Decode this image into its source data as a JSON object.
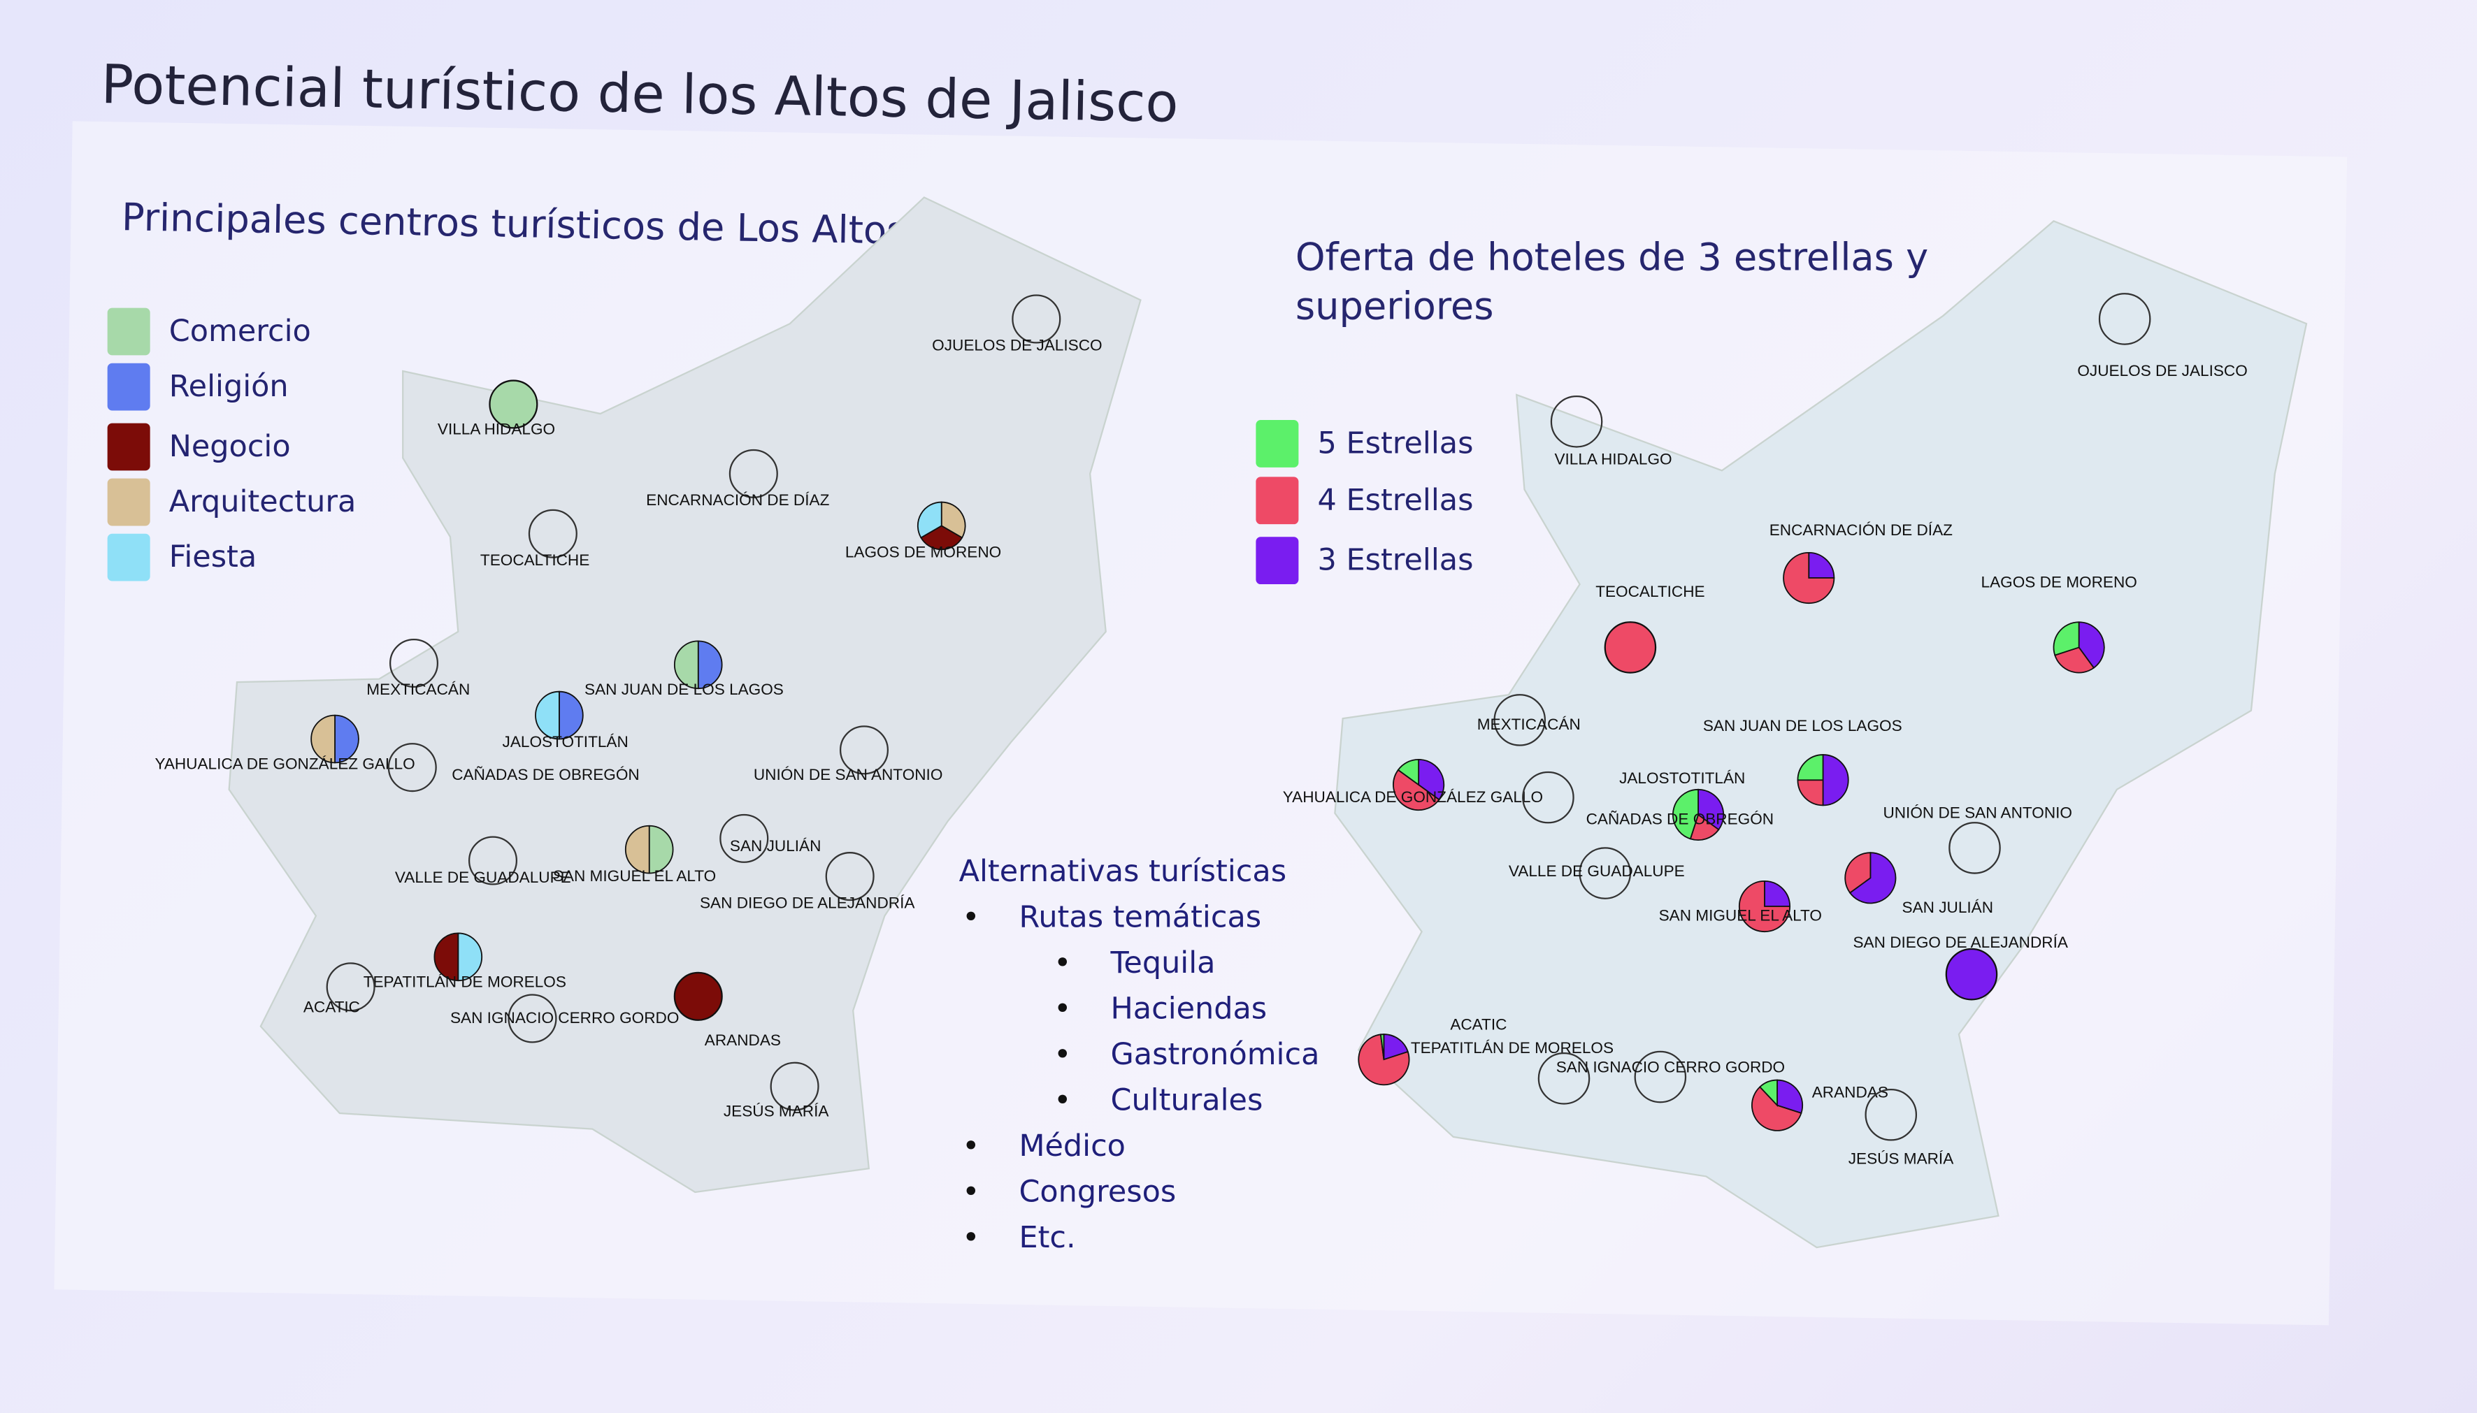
{
  "slide_title": "Potencial turístico de los Altos de Jalisco",
  "left_map": {
    "title": "Principales centros turísticos de Los Altos",
    "legend": [
      {
        "label": "Comercio",
        "color": "#a7d9a9"
      },
      {
        "label": "Religión",
        "color": "#5f7cf0"
      },
      {
        "label": "Negocio",
        "color": "#7c0c08"
      },
      {
        "label": "Arquitectura",
        "color": "#d8c096"
      },
      {
        "label": "Fiesta",
        "color": "#8fe0f7"
      }
    ],
    "municipalities": [
      {
        "name": "OJUELOS DE JALISCO",
        "categories": []
      },
      {
        "name": "VILLA HIDALGO",
        "categories": [
          "Comercio"
        ]
      },
      {
        "name": "ENCARNACIÓN DE DÍAZ",
        "categories": []
      },
      {
        "name": "TEOCALTICHE",
        "categories": []
      },
      {
        "name": "LAGOS DE MORENO",
        "categories": [
          "Arquitectura",
          "Negocio",
          "Fiesta"
        ]
      },
      {
        "name": "MEXTICACÁN",
        "categories": []
      },
      {
        "name": "SAN JUAN DE LOS LAGOS",
        "categories": [
          "Religión",
          "Comercio"
        ]
      },
      {
        "name": "JALOSTOTITLÁN",
        "categories": [
          "Religión",
          "Fiesta"
        ]
      },
      {
        "name": "YAHUALICA DE GONZÁLEZ GALLO",
        "categories": [
          "Religión",
          "Arquitectura"
        ]
      },
      {
        "name": "CAÑADAS DE OBREGÓN",
        "categories": []
      },
      {
        "name": "UNIÓN DE SAN ANTONIO",
        "categories": []
      },
      {
        "name": "VALLE DE GUADALUPE",
        "categories": []
      },
      {
        "name": "SAN MIGUEL EL ALTO",
        "categories": [
          "Comercio",
          "Arquitectura"
        ]
      },
      {
        "name": "SAN JULIÁN",
        "categories": []
      },
      {
        "name": "SAN DIEGO DE ALEJANDRÍA",
        "categories": []
      },
      {
        "name": "TEPATITLÁN DE MORELOS",
        "categories": [
          "Fiesta",
          "Negocio"
        ]
      },
      {
        "name": "ACATIC",
        "categories": []
      },
      {
        "name": "SAN IGNACIO CERRO GORDO",
        "categories": []
      },
      {
        "name": "ARANDAS",
        "categories": [
          "Negocio"
        ]
      },
      {
        "name": "JESÚS MARÍA",
        "categories": []
      }
    ]
  },
  "right_map": {
    "title": "Oferta  de hoteles de 3 estrellas y superiores",
    "legend": [
      {
        "label": "5 Estrellas",
        "color": "#5cf06a"
      },
      {
        "label": "4 Estrellas",
        "color": "#ee4a66"
      },
      {
        "label": "3 Estrellas",
        "color": "#7a1df0"
      }
    ],
    "municipalities": [
      {
        "name": "OJUELOS DE JALISCO",
        "share": {
          "3": 0,
          "5": 0,
          "4": 0
        }
      },
      {
        "name": "VILLA HIDALGO",
        "share": {
          "3": 0,
          "5": 0,
          "4": 0
        }
      },
      {
        "name": "ENCARNACIÓN DE DÍAZ",
        "share": {
          "3": 0.25,
          "5": 0,
          "4": 0.75
        }
      },
      {
        "name": "TEOCALTICHE",
        "share": {
          "3": 0,
          "5": 0,
          "4": 1
        }
      },
      {
        "name": "LAGOS DE MORENO",
        "share": {
          "3": 0.4,
          "5": 0.3,
          "4": 0.3
        }
      },
      {
        "name": "MEXTICACÁN",
        "share": {
          "3": 0,
          "5": 0,
          "4": 0
        }
      },
      {
        "name": "SAN JUAN DE LOS LAGOS",
        "share": {
          "3": 0.5,
          "5": 0.25,
          "4": 0.25
        }
      },
      {
        "name": "JALOSTOTITLÁN",
        "share": {
          "3": 0.35,
          "5": 0.45,
          "4": 0.2
        }
      },
      {
        "name": "YAHUALICA DE GONZÁLEZ GALLO",
        "share": {
          "3": 0.35,
          "5": 0.15,
          "4": 0.5
        }
      },
      {
        "name": "CAÑADAS DE OBREGÓN",
        "share": {
          "3": 0,
          "5": 0,
          "4": 0
        }
      },
      {
        "name": "UNIÓN DE SAN ANTONIO",
        "share": {
          "3": 0,
          "5": 0,
          "4": 0
        }
      },
      {
        "name": "VALLE DE GUADALUPE",
        "share": {
          "3": 0,
          "5": 0,
          "4": 0
        }
      },
      {
        "name": "SAN MIGUEL EL ALTO",
        "share": {
          "3": 0.25,
          "5": 0,
          "4": 0.75
        }
      },
      {
        "name": "SAN JULIÁN",
        "share": {
          "3": 0.65,
          "5": 0,
          "4": 0.35
        }
      },
      {
        "name": "SAN DIEGO DE ALEJANDRÍA",
        "share": {
          "3": 1,
          "5": 0,
          "4": 0
        }
      },
      {
        "name": "TEPATITLÁN DE MORELOS",
        "share": {
          "3": 0.2,
          "5": 0.02,
          "4": 0.78
        }
      },
      {
        "name": "ACATIC",
        "share": {
          "3": 0,
          "5": 0,
          "4": 0
        }
      },
      {
        "name": "SAN IGNACIO CERRO GORDO",
        "share": {
          "3": 0,
          "5": 0,
          "4": 0
        }
      },
      {
        "name": "ARANDAS",
        "share": {
          "3": 0.3,
          "5": 0.12,
          "4": 0.58
        }
      },
      {
        "name": "JESÚS MARÍA",
        "share": {
          "3": 0,
          "5": 0,
          "4": 0
        }
      }
    ]
  },
  "alternatives": {
    "heading": "Alternativas turísticas",
    "items": [
      {
        "label": "Rutas temáticas",
        "sub": [
          "Tequila",
          "Haciendas",
          "Gastronómica",
          "Culturales"
        ]
      },
      {
        "label": "Médico"
      },
      {
        "label": "Congresos"
      },
      {
        "label": "Etc."
      }
    ]
  }
}
